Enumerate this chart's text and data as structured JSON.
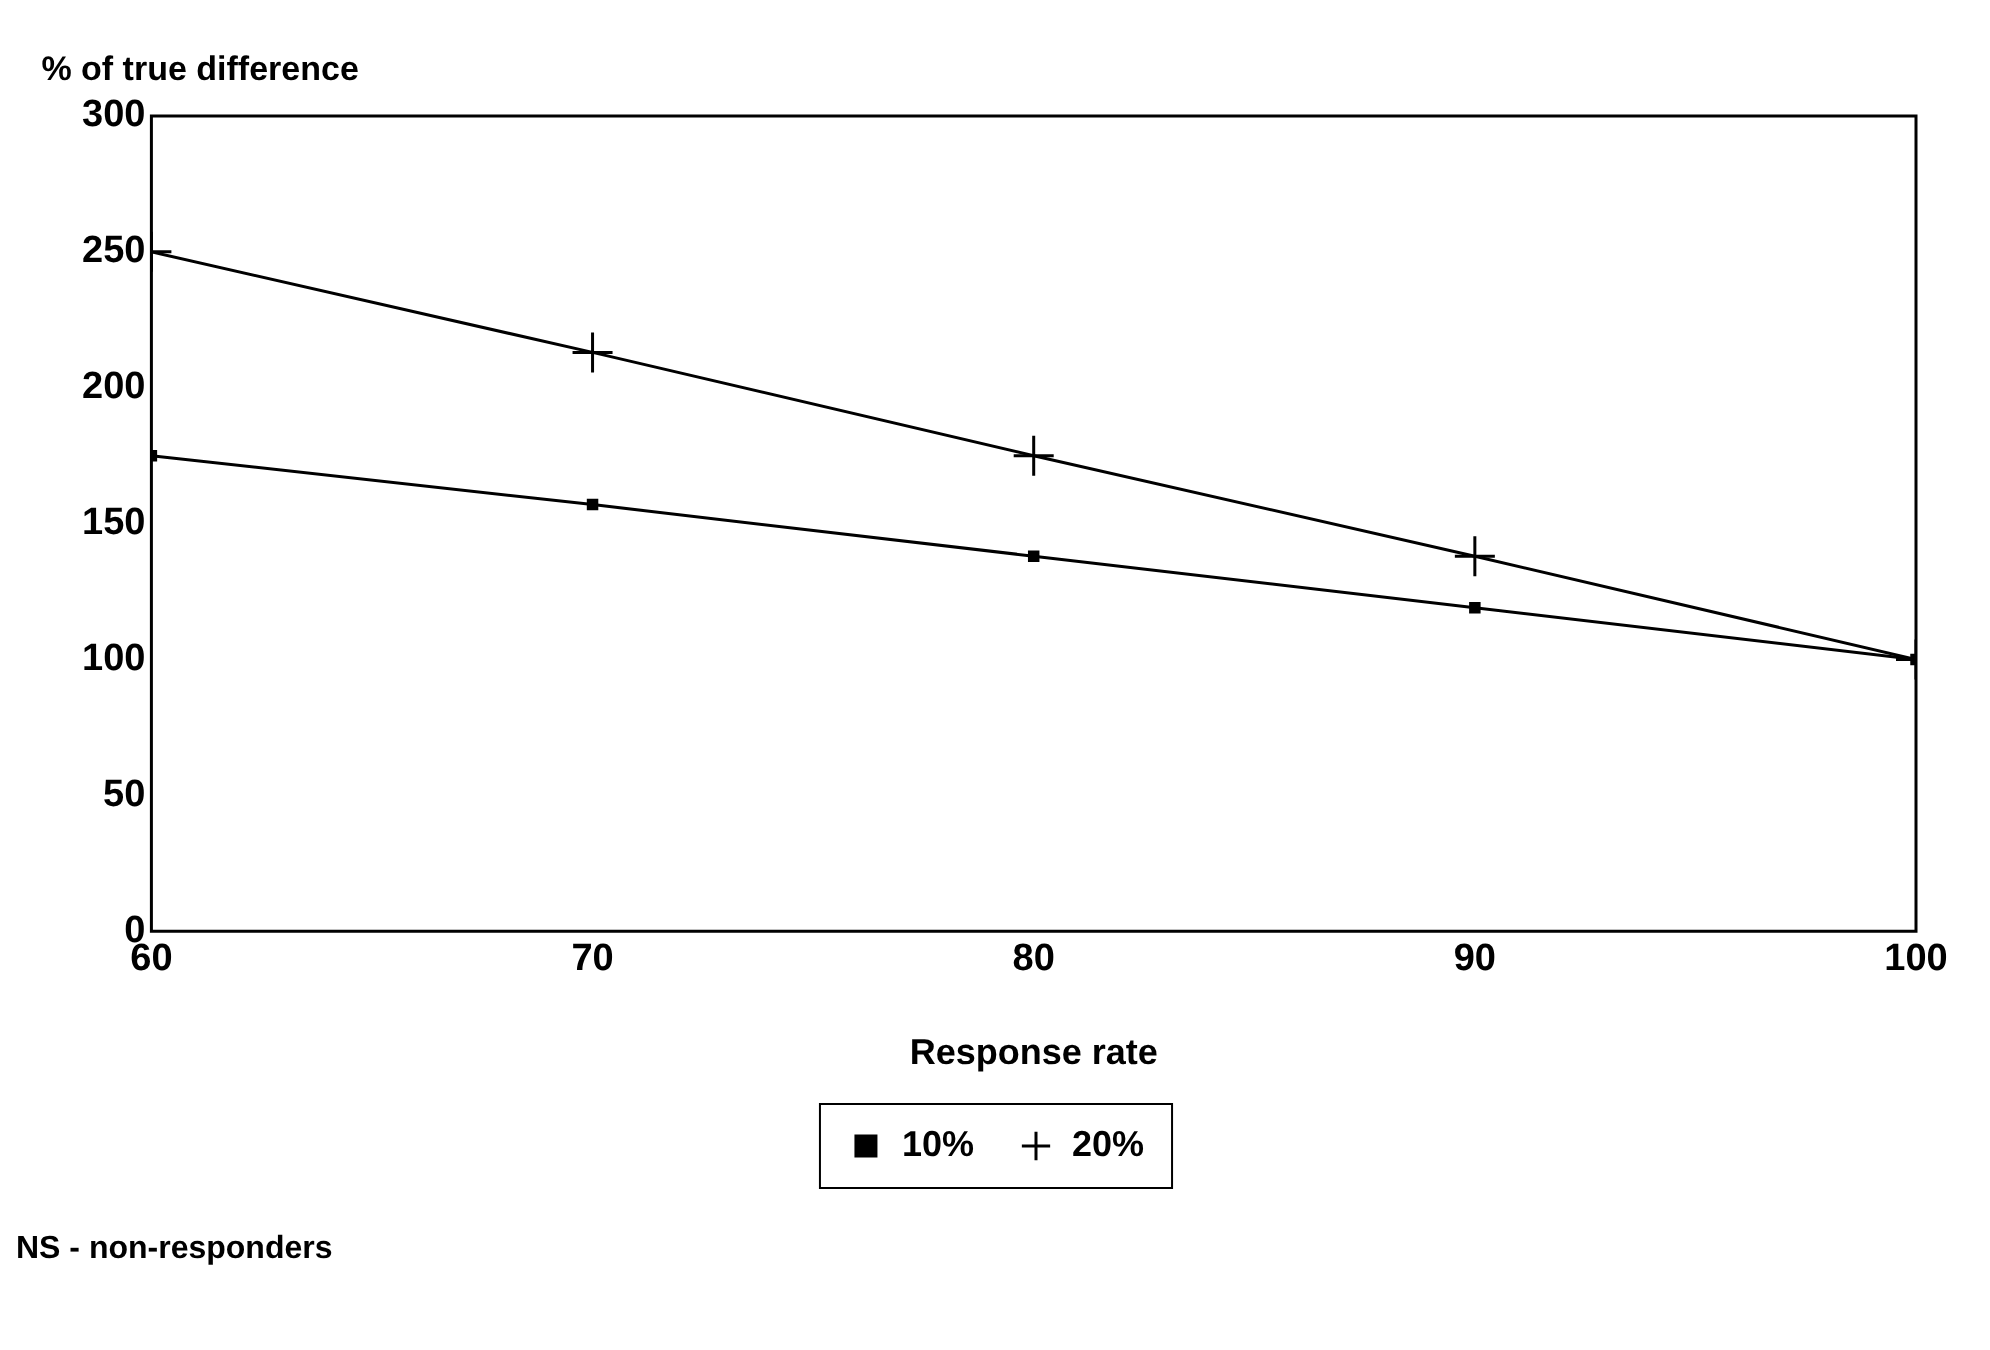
{
  "chart_data": {
    "type": "line",
    "ylabel": "% of true difference",
    "xlabel": "Response rate",
    "x": [
      60,
      70,
      80,
      90,
      100
    ],
    "series": [
      {
        "name": "10%",
        "color": "#000000",
        "marker": "square",
        "values": [
          175,
          157,
          138,
          119,
          100
        ]
      },
      {
        "name": "20%",
        "color": "#000000",
        "marker": "cross",
        "values": [
          250,
          213,
          175,
          138,
          100
        ]
      }
    ],
    "xlim": [
      60,
      100
    ],
    "xticks": [
      60,
      70,
      80,
      90,
      100
    ],
    "ylim": [
      0,
      300
    ],
    "yticks": [
      0,
      50,
      100,
      150,
      200,
      250,
      300
    ],
    "grid": false,
    "legend": "bottom",
    "line_style": "solid",
    "annotations": [
      "NS - non-responders"
    ]
  }
}
